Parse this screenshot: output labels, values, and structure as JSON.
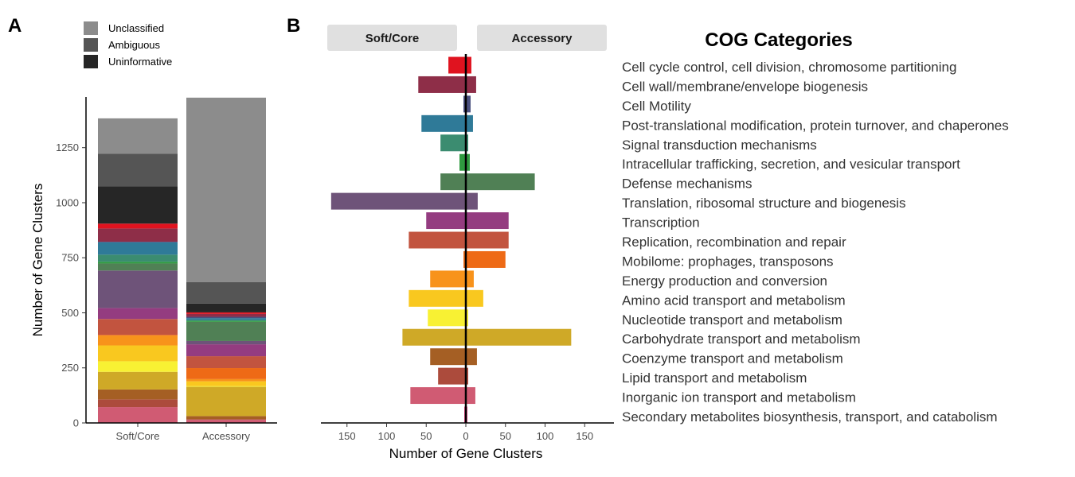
{
  "figure": {
    "panel_a_label": "A",
    "panel_b_label": "B",
    "cog_title": "COG Categories"
  },
  "chart_data": [
    {
      "type": "bar",
      "stacked": true,
      "panel": "A",
      "categories": [
        "Soft/Core",
        "Accessory"
      ],
      "ylabel": "Number of Gene Clusters",
      "xlabel": "",
      "ylim": [
        0,
        1480
      ],
      "yticks": [
        0,
        250,
        500,
        750,
        1000,
        1250
      ],
      "legend": {
        "position": "top-left",
        "entries": [
          {
            "name": "Unclassified",
            "color": "#8c8c8c"
          },
          {
            "name": "Ambiguous",
            "color": "#555555"
          },
          {
            "name": "Uninformative",
            "color": "#262626"
          }
        ]
      },
      "series_order_bottom_to_top": [
        "Secondary metabolites biosynthesis, transport, and catabolism",
        "Inorganic ion transport and metabolism",
        "Lipid transport and metabolism",
        "Coenzyme transport and metabolism",
        "Carbohydrate transport and metabolism",
        "Nucleotide transport and metabolism",
        "Amino acid transport and metabolism",
        "Energy production and conversion",
        "Mobilome: prophages, transposons",
        "Replication, recombination and repair",
        "Transcription",
        "Translation, ribosomal structure and biogenesis",
        "Defense mechanisms",
        "Intracellular trafficking, secretion, and vesicular transport",
        "Signal transduction mechanisms",
        "Post-translational modification, protein turnover, and chaperones",
        "Cell Motility",
        "Cell wall/membrane/envelope biogenesis",
        "Cell cycle control, cell division, chromosome partitioning",
        "Uninformative",
        "Ambiguous",
        "Unclassified"
      ],
      "series_colors": [
        "#e8488a",
        "#d05b73",
        "#ac4b3c",
        "#a55f24",
        "#cfa927",
        "#f8f133",
        "#f9c81f",
        "#f8931b",
        "#ee6a16",
        "#c2543f",
        "#943c80",
        "#6e5379",
        "#508055",
        "#2f9a3f",
        "#3b8c70",
        "#2f7a98",
        "#4a4f7f",
        "#8e2e48",
        "#e0131f",
        "#262626",
        "#555555",
        "#8c8c8c"
      ],
      "series_values": {
        "Soft/Core": [
          2,
          70,
          35,
          45,
          80,
          48,
          72,
          45,
          3,
          72,
          50,
          170,
          32,
          8,
          32,
          56,
          3,
          60,
          22,
          170,
          148,
          160
        ],
        "Accessory": [
          2,
          12,
          3,
          14,
          133,
          3,
          22,
          10,
          50,
          54,
          54,
          15,
          87,
          5,
          3,
          9,
          6,
          13,
          7,
          40,
          97,
          838
        ]
      }
    },
    {
      "type": "bar",
      "orientation": "horizontal",
      "diverging": true,
      "panel": "B",
      "xlabel": "Number of Gene Clusters",
      "ylabel": "",
      "xlim": [
        -185,
        185
      ],
      "xticks": [
        -150,
        -100,
        -50,
        0,
        50,
        100,
        150
      ],
      "xtick_labels": [
        "150",
        "100",
        "50",
        "0",
        "50",
        "100",
        "150"
      ],
      "strip_labels": [
        "Soft/Core",
        "Accessory"
      ],
      "categories": [
        "Cell cycle control, cell division, chromosome partitioning",
        "Cell wall/membrane/envelope biogenesis",
        "Cell Motility",
        "Post-translational modification, protein turnover, and chaperones",
        "Signal transduction mechanisms",
        "Intracellular trafficking, secretion, and vesicular transport",
        "Defense mechanisms",
        "Translation, ribosomal structure and biogenesis",
        "Transcription",
        "Replication, recombination and repair",
        "Mobilome: prophages, transposons",
        "Energy production and conversion",
        "Amino acid transport and metabolism",
        "Nucleotide transport and metabolism",
        "Carbohydrate transport and metabolism",
        "Coenzyme transport and metabolism",
        "Lipid transport and metabolism",
        "Inorganic ion transport and metabolism",
        "Secondary metabolites biosynthesis, transport, and catabolism"
      ],
      "colors": [
        "#e0131f",
        "#8e2e48",
        "#4a4f7f",
        "#2f7a98",
        "#3b8c70",
        "#2f9a3f",
        "#508055",
        "#6e5379",
        "#943c80",
        "#c2543f",
        "#ee6a16",
        "#f8931b",
        "#f9c81f",
        "#f8f133",
        "#cfa927",
        "#a55f24",
        "#ac4b3c",
        "#d05b73",
        "#e8488a"
      ],
      "series": [
        {
          "name": "Soft/Core",
          "values": [
            22,
            60,
            3,
            56,
            32,
            8,
            32,
            170,
            50,
            72,
            3,
            45,
            72,
            48,
            80,
            45,
            35,
            70,
            2
          ]
        },
        {
          "name": "Accessory",
          "values": [
            7,
            13,
            6,
            9,
            3,
            5,
            87,
            15,
            54,
            54,
            50,
            10,
            22,
            3,
            133,
            14,
            3,
            12,
            2
          ]
        }
      ]
    }
  ]
}
